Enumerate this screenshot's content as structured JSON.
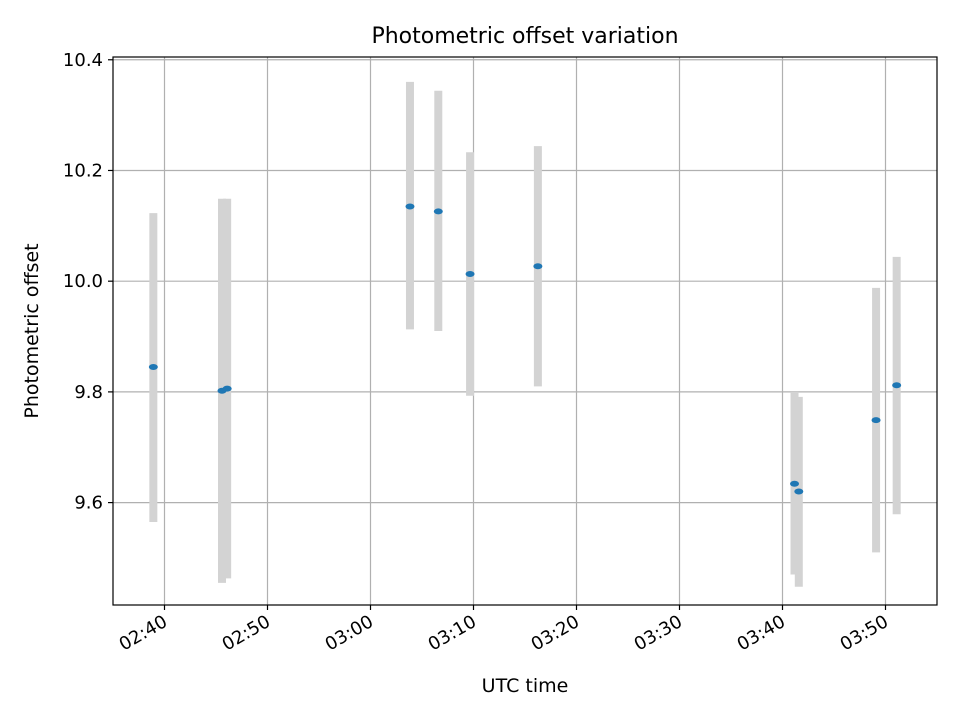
{
  "chart_data": {
    "type": "scatter",
    "title": "Photometric offset variation",
    "xlabel": "UTC time",
    "ylabel": "Photometric offset",
    "xlim": [
      "02:35",
      "03:55"
    ],
    "ylim": [
      9.415,
      10.405
    ],
    "x_ticks": [
      "02:40",
      "02:50",
      "03:00",
      "03:10",
      "03:20",
      "03:30",
      "03:40",
      "03:50"
    ],
    "y_ticks": [
      "9.6",
      "9.8",
      "10.0",
      "10.2",
      "10.4"
    ],
    "grid": true,
    "legend": "none",
    "colors": {
      "point": "#1f77b4",
      "errorbar": "#d3d3d3",
      "grid": "#b0b0b0"
    },
    "points": [
      {
        "x": "02:38:55",
        "y": 9.845,
        "yerr_low": 9.565,
        "yerr_high": 10.123
      },
      {
        "x": "02:45:35",
        "y": 9.802,
        "yerr_low": 9.455,
        "yerr_high": 10.149
      },
      {
        "x": "02:46:05",
        "y": 9.806,
        "yerr_low": 9.463,
        "yerr_high": 10.149
      },
      {
        "x": "03:03:50",
        "y": 10.135,
        "yerr_low": 9.913,
        "yerr_high": 10.36
      },
      {
        "x": "03:06:35",
        "y": 10.126,
        "yerr_low": 9.91,
        "yerr_high": 10.344
      },
      {
        "x": "03:09:40",
        "y": 10.013,
        "yerr_low": 9.793,
        "yerr_high": 10.233
      },
      {
        "x": "03:16:15",
        "y": 10.027,
        "yerr_low": 9.81,
        "yerr_high": 10.244
      },
      {
        "x": "03:41:10",
        "y": 9.634,
        "yerr_low": 9.47,
        "yerr_high": 9.8
      },
      {
        "x": "03:41:35",
        "y": 9.62,
        "yerr_low": 9.448,
        "yerr_high": 9.791
      },
      {
        "x": "03:49:05",
        "y": 9.749,
        "yerr_low": 9.51,
        "yerr_high": 9.988
      },
      {
        "x": "03:51:05",
        "y": 9.812,
        "yerr_low": 9.579,
        "yerr_high": 10.044
      }
    ]
  }
}
